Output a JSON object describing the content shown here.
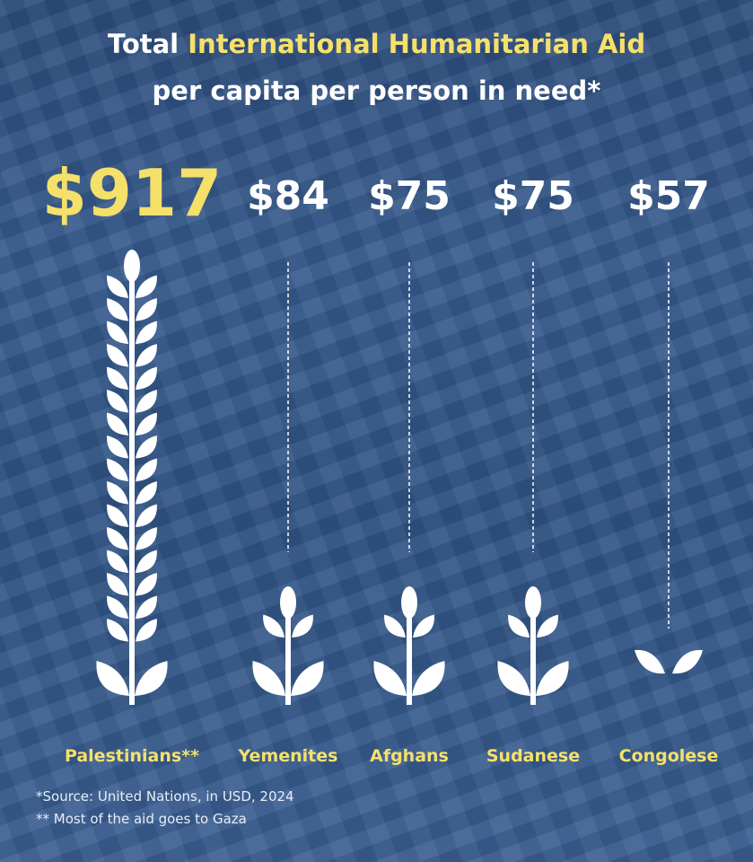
{
  "title": {
    "prefix": "Total ",
    "highlight": "International Humanitarian Aid",
    "line2": "per capita per person in need*"
  },
  "chart_data": {
    "type": "bar",
    "style": "pictogram wheat stalks",
    "categories": [
      "Palestinians**",
      "Yemenites",
      "Afghans",
      "Sudanese",
      "Congolese"
    ],
    "values": [
      917,
      84,
      75,
      75,
      57
    ],
    "value_labels": [
      "$917",
      "$84",
      "$75",
      "$75",
      "$57"
    ],
    "unit": "USD",
    "highlight_color": "#f5e06a",
    "bar_color": "#ffffff"
  },
  "notes": [
    "*Source: United Nations, in USD, 2024",
    "** Most of the aid goes to Gaza"
  ]
}
